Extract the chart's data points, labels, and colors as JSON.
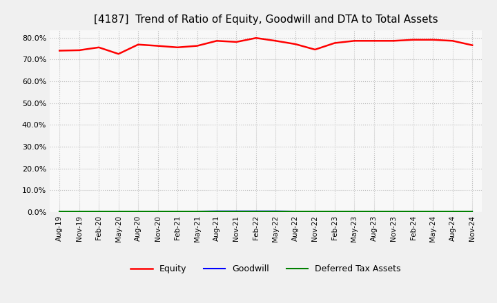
{
  "title": "[4187]  Trend of Ratio of Equity, Goodwill and DTA to Total Assets",
  "x_labels": [
    "Aug-19",
    "Nov-19",
    "Feb-20",
    "May-20",
    "Aug-20",
    "Nov-20",
    "Feb-21",
    "May-21",
    "Aug-21",
    "Nov-21",
    "Feb-22",
    "May-22",
    "Aug-22",
    "Nov-22",
    "Feb-23",
    "May-23",
    "Aug-23",
    "Nov-23",
    "Feb-24",
    "May-24",
    "Aug-24",
    "Nov-24"
  ],
  "equity": [
    74.0,
    74.2,
    75.5,
    72.5,
    76.8,
    76.2,
    75.5,
    76.2,
    78.5,
    78.0,
    79.8,
    78.5,
    77.0,
    74.5,
    77.5,
    78.5,
    78.5,
    78.5,
    79.0,
    79.0,
    78.5,
    76.5
  ],
  "goodwill": [
    0.0,
    0.0,
    0.0,
    0.0,
    0.0,
    0.0,
    0.0,
    0.3,
    0.4,
    0.4,
    0.4,
    0.4,
    0.3,
    0.2,
    0.2,
    0.1,
    0.1,
    0.1,
    0.1,
    0.0,
    0.0,
    0.0
  ],
  "dta": [
    0.3,
    0.3,
    0.3,
    0.3,
    0.3,
    0.3,
    0.3,
    0.3,
    0.3,
    0.3,
    0.3,
    0.3,
    0.3,
    0.3,
    0.3,
    0.3,
    0.3,
    0.3,
    0.3,
    0.3,
    0.3,
    0.3
  ],
  "equity_color": "#FF0000",
  "goodwill_color": "#0000FF",
  "dta_color": "#008000",
  "bg_color": "#F0F0F0",
  "plot_bg_color": "#F8F8F8",
  "grid_color": "#BBBBBB",
  "ylim": [
    0,
    83.33
  ],
  "yticks": [
    0,
    10,
    20,
    30,
    40,
    50,
    60,
    70,
    80
  ],
  "title_fontsize": 11,
  "legend_labels": [
    "Equity",
    "Goodwill",
    "Deferred Tax Assets"
  ]
}
